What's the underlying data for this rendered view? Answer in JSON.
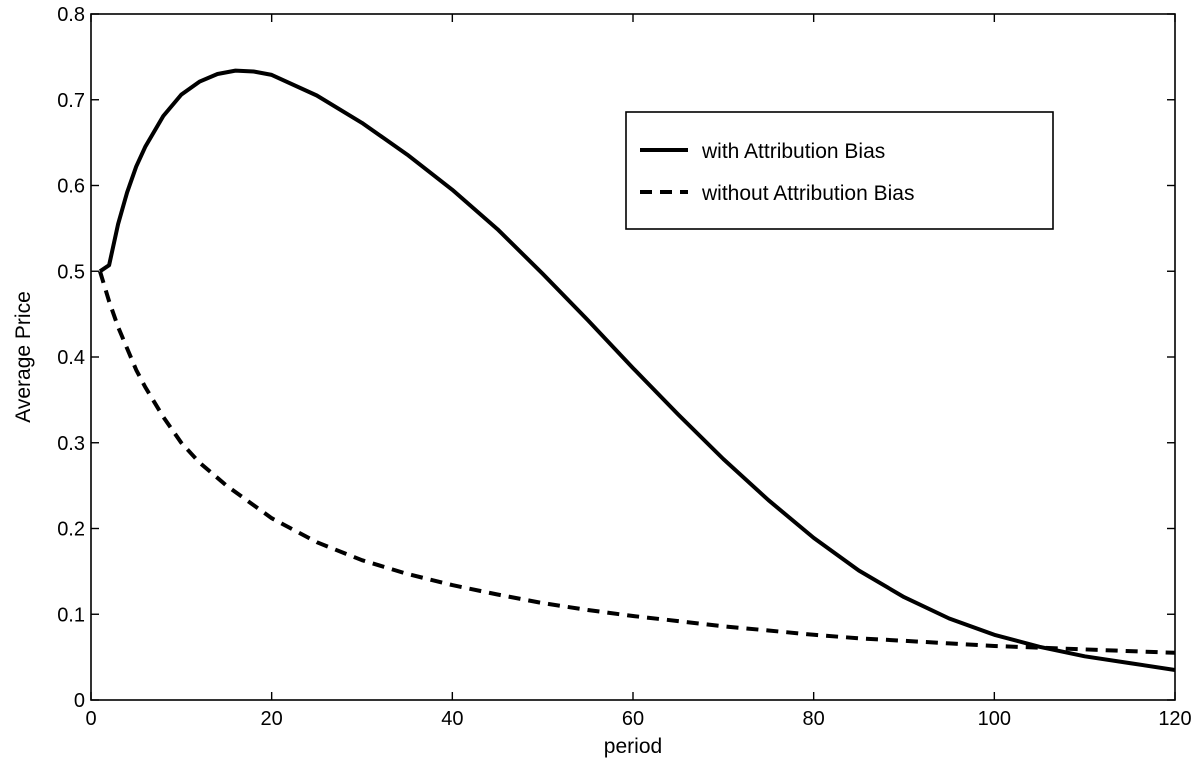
{
  "chart_data": {
    "type": "line",
    "title": "",
    "xlabel": "period",
    "ylabel": "Average Price",
    "xlim": [
      0,
      120
    ],
    "ylim": [
      0,
      0.8
    ],
    "xticks": [
      "0",
      "20",
      "40",
      "60",
      "80",
      "100",
      "120"
    ],
    "yticks": [
      "0",
      "0.1",
      "0.2",
      "0.3",
      "0.4",
      "0.5",
      "0.6",
      "0.7",
      "0.8"
    ],
    "grid": false,
    "legend_position": "top-right",
    "series": [
      {
        "name": "with Attribution Bias",
        "style": "solid",
        "color": "#000000",
        "x": [
          1,
          2,
          3,
          4,
          5,
          6,
          8,
          10,
          12,
          14,
          16,
          18,
          20,
          25,
          30,
          35,
          40,
          45,
          50,
          55,
          60,
          65,
          70,
          75,
          80,
          85,
          90,
          95,
          100,
          105,
          110,
          115,
          120
        ],
        "y": [
          0.5,
          0.507,
          0.555,
          0.592,
          0.622,
          0.645,
          0.681,
          0.706,
          0.721,
          0.73,
          0.734,
          0.733,
          0.729,
          0.705,
          0.673,
          0.636,
          0.595,
          0.549,
          0.497,
          0.443,
          0.387,
          0.333,
          0.281,
          0.233,
          0.189,
          0.151,
          0.12,
          0.095,
          0.076,
          0.062,
          0.051,
          0.043,
          0.035
        ]
      },
      {
        "name": "without Attribution Bias",
        "style": "dashed",
        "color": "#000000",
        "x": [
          1,
          2,
          3,
          4,
          5,
          6,
          8,
          10,
          12,
          15,
          20,
          25,
          30,
          35,
          40,
          45,
          50,
          55,
          60,
          65,
          70,
          75,
          80,
          85,
          90,
          95,
          100,
          105,
          110,
          115,
          120
        ],
        "y": [
          0.5,
          0.465,
          0.435,
          0.41,
          0.385,
          0.365,
          0.33,
          0.3,
          0.277,
          0.25,
          0.212,
          0.184,
          0.163,
          0.147,
          0.134,
          0.123,
          0.113,
          0.105,
          0.098,
          0.092,
          0.086,
          0.081,
          0.076,
          0.072,
          0.069,
          0.066,
          0.063,
          0.061,
          0.059,
          0.057,
          0.055
        ]
      }
    ]
  }
}
